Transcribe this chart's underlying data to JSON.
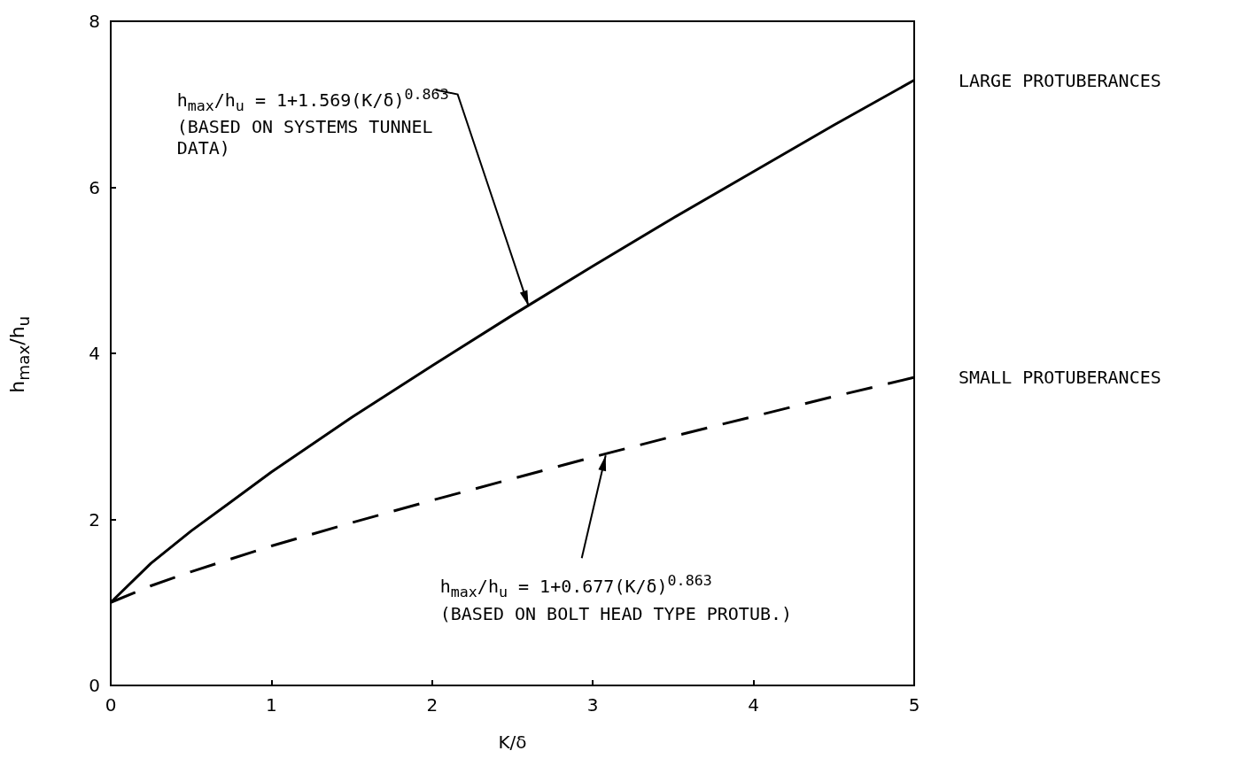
{
  "chart_data": {
    "type": "line",
    "xlabel": "K/δ",
    "ylabel": "h$_{max}$/h$_{u}$",
    "x": [
      0,
      0.25,
      0.5,
      1,
      1.5,
      2,
      2.5,
      3,
      3.5,
      4,
      4.5,
      5
    ],
    "series": [
      {
        "name": "LARGE PROTUBERANCES",
        "color": "#000000",
        "line_style": "solid",
        "values": [
          1,
          1.47,
          1.86,
          2.57,
          3.23,
          3.85,
          4.46,
          5.05,
          5.63,
          6.19,
          6.75,
          7.29
        ]
      },
      {
        "name": "SMALL PROTUBERANCES",
        "color": "#000000",
        "line_style": "dashed",
        "values": [
          1,
          1.2,
          1.37,
          1.68,
          1.96,
          2.23,
          2.49,
          2.75,
          3.0,
          3.24,
          3.48,
          3.71
        ]
      }
    ],
    "annotations": [
      {
        "text": "h$_{max}$/h$_{u}$ = 1+1.569(K/δ)$^{0.863}$\n(BASED ON SYSTEMS TUNNEL\nDATA)",
        "x": 2.6,
        "y": 4.57
      },
      {
        "text": "h$_{max}$/h$_{u}$ = 1+0.677(K/δ)$^{0.863}$\n(BASED ON BOLT HEAD TYPE PROTUB.)",
        "x": 3.08,
        "y": 2.77
      }
    ],
    "xlim": [
      0,
      5
    ],
    "xticks": [
      0,
      1,
      2,
      3,
      4,
      5
    ],
    "ylim": [
      0,
      8
    ],
    "yticks": [
      0,
      2,
      4,
      6,
      8
    ],
    "grid": false,
    "legend": false,
    "marker": "none"
  }
}
